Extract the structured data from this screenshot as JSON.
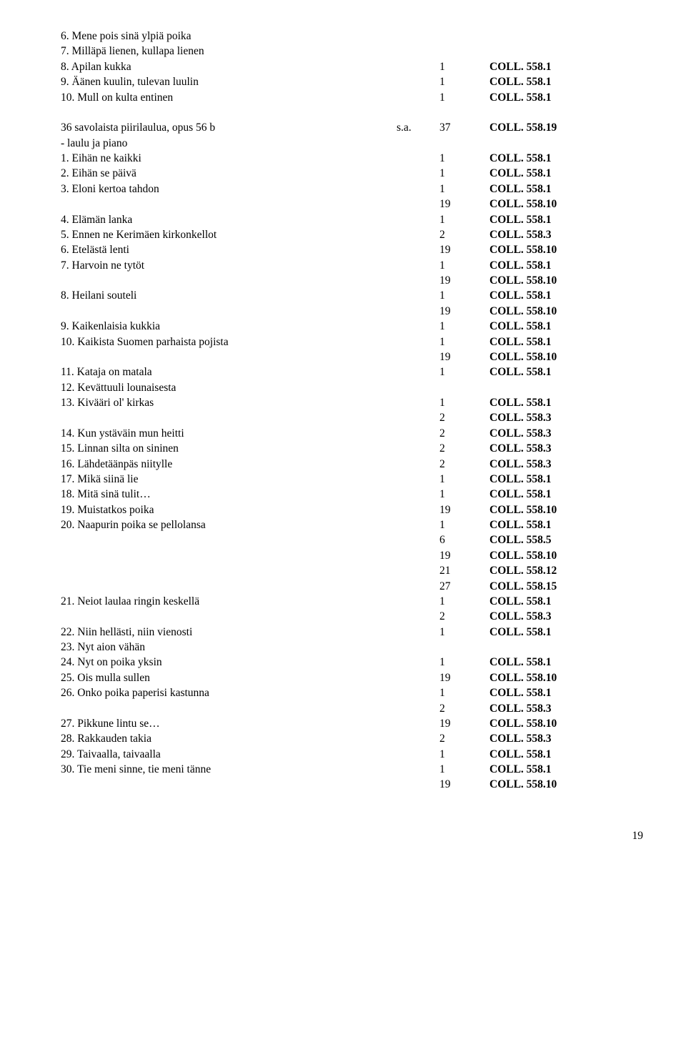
{
  "rows": [
    {
      "title": "6. Mene pois sinä ylpiä poika",
      "abbr": "",
      "num": "",
      "coll": ""
    },
    {
      "title": "7. Milläpä lienen, kullapa lienen",
      "abbr": "",
      "num": "",
      "coll": ""
    },
    {
      "title": "8. Apilan kukka",
      "abbr": "",
      "num": "1",
      "coll": "COLL. 558.1"
    },
    {
      "title": "9. Äänen kuulin, tulevan luulin",
      "abbr": "",
      "num": "1",
      "coll": "COLL. 558.1"
    },
    {
      "title": "10. Mull on kulta entinen",
      "abbr": "",
      "num": "1",
      "coll": "COLL. 558.1"
    },
    {
      "title": "",
      "abbr": "",
      "num": "",
      "coll": "",
      "spacer": true
    },
    {
      "title": "36 savolaista piirilaulua, opus 56 b",
      "abbr": "s.a.",
      "num": "37",
      "coll": "COLL. 558.19"
    },
    {
      "title": "- laulu ja piano",
      "abbr": "",
      "num": "",
      "coll": ""
    },
    {
      "title": "1. Eihän ne kaikki",
      "abbr": "",
      "num": "1",
      "coll": "COLL. 558.1"
    },
    {
      "title": "2. Eihän se päivä",
      "abbr": "",
      "num": "1",
      "coll": "COLL. 558.1"
    },
    {
      "title": "3. Eloni kertoa tahdon",
      "abbr": "",
      "num": "1",
      "coll": "COLL. 558.1"
    },
    {
      "title": "",
      "abbr": "",
      "num": "19",
      "coll": "COLL. 558.10"
    },
    {
      "title": "4. Elämän lanka",
      "abbr": "",
      "num": "1",
      "coll": "COLL. 558.1"
    },
    {
      "title": "5. Ennen ne Kerimäen kirkonkellot",
      "abbr": "",
      "num": "2",
      "coll": "COLL. 558.3"
    },
    {
      "title": "6. Etelästä lenti",
      "abbr": "",
      "num": "19",
      "coll": "COLL. 558.10"
    },
    {
      "title": "7. Harvoin ne tytöt",
      "abbr": "",
      "num": "1",
      "coll": "COLL. 558.1"
    },
    {
      "title": "",
      "abbr": "",
      "num": "19",
      "coll": "COLL. 558.10"
    },
    {
      "title": "8. Heilani souteli",
      "abbr": "",
      "num": "1",
      "coll": "COLL. 558.1"
    },
    {
      "title": "",
      "abbr": "",
      "num": "19",
      "coll": "COLL. 558.10"
    },
    {
      "title": "9. Kaikenlaisia kukkia",
      "abbr": "",
      "num": "1",
      "coll": "COLL. 558.1"
    },
    {
      "title": "10. Kaikista Suomen parhaista pojista",
      "abbr": "",
      "num": "1",
      "coll": "COLL. 558.1"
    },
    {
      "title": "",
      "abbr": "",
      "num": "19",
      "coll": "COLL. 558.10"
    },
    {
      "title": "11. Kataja on matala",
      "abbr": "",
      "num": "1",
      "coll": "COLL. 558.1"
    },
    {
      "title": "12. Kevättuuli lounaisesta",
      "abbr": "",
      "num": "",
      "coll": ""
    },
    {
      "title": "13. Kivääri ol' kirkas",
      "abbr": "",
      "num": "1",
      "coll": "COLL. 558.1"
    },
    {
      "title": "",
      "abbr": "",
      "num": "2",
      "coll": "COLL. 558.3"
    },
    {
      "title": "14. Kun ystäväin mun heitti",
      "abbr": "",
      "num": "2",
      "coll": "COLL. 558.3"
    },
    {
      "title": "15. Linnan silta on sininen",
      "abbr": "",
      "num": "2",
      "coll": "COLL. 558.3"
    },
    {
      "title": "16. Lähdetäänpäs niitylle",
      "abbr": "",
      "num": "2",
      "coll": "COLL. 558.3"
    },
    {
      "title": "17. Mikä siinä lie",
      "abbr": "",
      "num": "1",
      "coll": "COLL. 558.1"
    },
    {
      "title": "18. Mitä sinä tulit…",
      "abbr": "",
      "num": "1",
      "coll": "COLL. 558.1"
    },
    {
      "title": "19. Muistatkos poika",
      "abbr": "",
      "num": "19",
      "coll": "COLL. 558.10"
    },
    {
      "title": "20. Naapurin poika se pellolansa",
      "abbr": "",
      "num": "1",
      "coll": "COLL. 558.1"
    },
    {
      "title": "",
      "abbr": "",
      "num": "6",
      "coll": "COLL. 558.5"
    },
    {
      "title": "",
      "abbr": "",
      "num": "19",
      "coll": "COLL. 558.10"
    },
    {
      "title": "",
      "abbr": "",
      "num": "21",
      "coll": "COLL. 558.12"
    },
    {
      "title": "",
      "abbr": "",
      "num": "27",
      "coll": "COLL. 558.15"
    },
    {
      "title": "21. Neiot laulaa ringin keskellä",
      "abbr": "",
      "num": "1",
      "coll": "COLL. 558.1"
    },
    {
      "title": "",
      "abbr": "",
      "num": "2",
      "coll": "COLL. 558.3"
    },
    {
      "title": "22. Niin hellästi, niin vienosti",
      "abbr": "",
      "num": "1",
      "coll": "COLL. 558.1"
    },
    {
      "title": "23. Nyt aion vähän",
      "abbr": "",
      "num": "",
      "coll": ""
    },
    {
      "title": "24. Nyt on poika yksin",
      "abbr": "",
      "num": "1",
      "coll": "COLL. 558.1"
    },
    {
      "title": "25. Ois mulla sullen",
      "abbr": "",
      "num": "19",
      "coll": "COLL. 558.10"
    },
    {
      "title": "26. Onko poika paperisi kastunna",
      "abbr": "",
      "num": "1",
      "coll": "COLL. 558.1"
    },
    {
      "title": "",
      "abbr": "",
      "num": "2",
      "coll": "COLL. 558.3"
    },
    {
      "title": "27. Pikkune lintu se…",
      "abbr": "",
      "num": "19",
      "coll": "COLL. 558.10"
    },
    {
      "title": "28. Rakkauden takia",
      "abbr": "",
      "num": "2",
      "coll": "COLL. 558.3"
    },
    {
      "title": "29. Taivaalla, taivaalla",
      "abbr": "",
      "num": "1",
      "coll": "COLL. 558.1"
    },
    {
      "title": "30. Tie meni sinne, tie meni tänne",
      "abbr": "",
      "num": "1",
      "coll": "COLL. 558.1"
    },
    {
      "title": "",
      "abbr": "",
      "num": "19",
      "coll": "COLL. 558.10"
    }
  ],
  "page_number": "19"
}
